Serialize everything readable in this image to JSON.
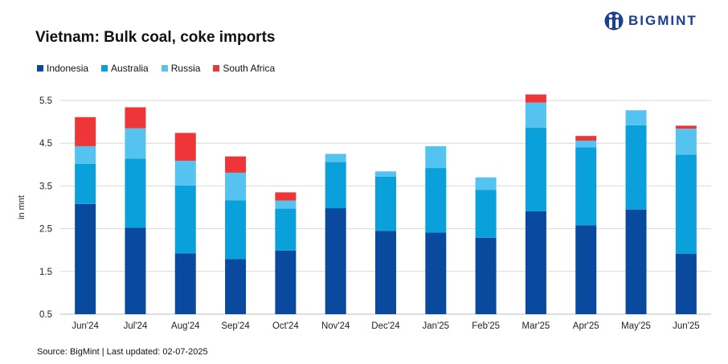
{
  "brand": {
    "name": "BIGMINT",
    "color": "#1b3f8f"
  },
  "footer": {
    "source": "Source: BigMint | Last updated: 02-07-2025"
  },
  "chart_data": {
    "type": "bar",
    "stacked": true,
    "title": "Vietnam: Bulk coal, coke imports",
    "ylabel": "in mnt",
    "xlabel": "",
    "ylim": [
      0.5,
      5.5
    ],
    "yticks": [
      0.5,
      1.5,
      2.5,
      3.5,
      4.5,
      5.5
    ],
    "grid": true,
    "legend_position": "top-left",
    "categories": [
      "Jun'24",
      "Jul'24",
      "Aug'24",
      "Sep'24",
      "Oct'24",
      "Nov'24",
      "Dec'24",
      "Jan'25",
      "Feb'25",
      "Mar'25",
      "Apr'25",
      "May'25",
      "Jun'25"
    ],
    "series": [
      {
        "name": "Indonesia",
        "color": "#0a4a9e",
        "values": [
          2.58,
          2.02,
          1.42,
          1.29,
          1.49,
          2.48,
          1.95,
          1.91,
          1.79,
          2.41,
          2.08,
          2.45,
          1.41
        ]
      },
      {
        "name": "Australia",
        "color": "#09a0dc",
        "values": [
          0.94,
          1.62,
          1.59,
          1.37,
          0.98,
          1.08,
          1.27,
          1.51,
          1.12,
          1.95,
          1.82,
          1.97,
          2.32
        ]
      },
      {
        "name": "Russia",
        "color": "#55c3f0",
        "values": [
          0.41,
          0.71,
          0.58,
          0.65,
          0.19,
          0.19,
          0.12,
          0.51,
          0.29,
          0.59,
          0.16,
          0.35,
          0.61
        ]
      },
      {
        "name": "South Africa",
        "color": "#ee3537",
        "values": [
          0.68,
          0.49,
          0.65,
          0.38,
          0.19,
          0,
          0,
          0,
          0,
          0.19,
          0.11,
          0,
          0.07
        ]
      }
    ]
  }
}
